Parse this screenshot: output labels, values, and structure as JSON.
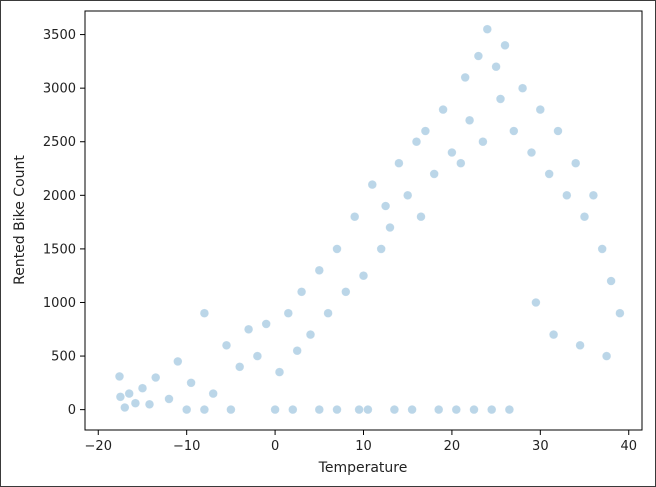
{
  "chart_data": {
    "type": "scatter",
    "title": "",
    "xlabel": "Temperature",
    "ylabel": "Rented Bike Count",
    "xlim": [
      -21.5,
      41.5
    ],
    "ylim": [
      -190,
      3720
    ],
    "xticks": [
      -20,
      -10,
      0,
      10,
      20,
      30,
      40
    ],
    "yticks": [
      0,
      500,
      1000,
      1500,
      2000,
      2500,
      3000,
      3500
    ],
    "marker_color": "#1f77b4",
    "marker_alpha": 0.3,
    "grid": false,
    "legend": "none",
    "points": {
      "x": [
        -17.6,
        -17.5,
        -17.0,
        -16.5,
        -15.8,
        -15.0,
        -14.2,
        -13.5,
        -12.0,
        -11.0,
        -9.5,
        -8.0,
        -7.0,
        -5.5,
        -4.0,
        -3.0,
        -2.0,
        -1.0,
        0.5,
        1.5,
        2.5,
        3.0,
        4.0,
        5.0,
        6.0,
        7.0,
        8.0,
        9.0,
        10.0,
        11.0,
        12.0,
        12.5,
        13.0,
        14.0,
        15.0,
        16.0,
        16.5,
        17.0,
        18.0,
        19.0,
        20.0,
        21.0,
        21.5,
        22.0,
        23.0,
        23.5,
        24.0,
        25.0,
        25.5,
        26.0,
        27.0,
        28.0,
        29.0,
        30.0,
        31.0,
        32.0,
        33.0,
        34.0,
        35.0,
        36.0,
        37.0,
        38.0,
        39.0,
        -8.0,
        -10.0,
        -5.0,
        0.0,
        2.0,
        5.0,
        7.0,
        9.5,
        10.5,
        13.5,
        15.5,
        18.5,
        20.5,
        22.5,
        24.5,
        26.5,
        29.5,
        31.5,
        34.5,
        37.5
      ],
      "y": [
        310,
        120,
        20,
        150,
        60,
        200,
        50,
        300,
        100,
        450,
        250,
        900,
        150,
        600,
        400,
        750,
        500,
        800,
        350,
        900,
        550,
        1100,
        700,
        1300,
        900,
        1500,
        1100,
        1800,
        1250,
        2100,
        1500,
        1900,
        1700,
        2300,
        2000,
        2500,
        1800,
        2600,
        2200,
        2800,
        2400,
        2300,
        3100,
        2700,
        3300,
        2500,
        3550,
        3200,
        2900,
        3400,
        2600,
        3000,
        2400,
        2800,
        2200,
        2600,
        2000,
        2300,
        1800,
        2000,
        1500,
        1200,
        900,
        0,
        0,
        0,
        0,
        0,
        0,
        0,
        0,
        0,
        0,
        0,
        0,
        0,
        0,
        0,
        0,
        1000,
        700,
        600,
        500
      ]
    }
  }
}
